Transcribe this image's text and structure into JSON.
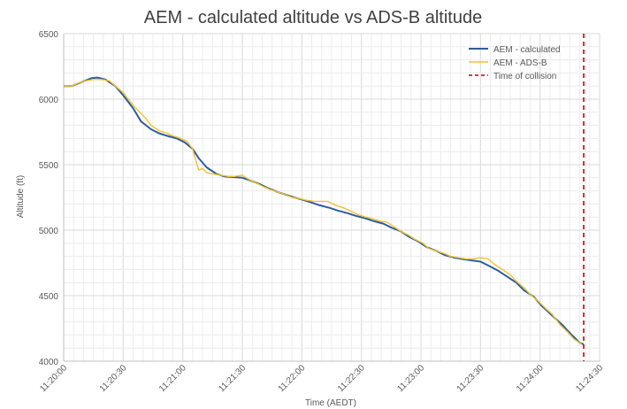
{
  "chart_data": {
    "type": "line",
    "title": "AEM - calculated altitude vs ADS-B altitude",
    "xlabel": "Time (AEDT)",
    "ylabel": "Altitude (ft)",
    "x_ticks": [
      "11:20:00",
      "11:20:30",
      "11:21:00",
      "11:21:30",
      "11:22:00",
      "11:22:30",
      "11:23:00",
      "11:23:30",
      "11:24:00",
      "11:24:30"
    ],
    "y_ticks": [
      4000,
      4500,
      5000,
      5500,
      6000,
      6500
    ],
    "xlim": [
      "11:20:00",
      "11:24:30"
    ],
    "ylim": [
      4000,
      6500
    ],
    "grid": true,
    "legend_position": "top-right",
    "series": [
      {
        "name": "AEM - calculated",
        "color": "#2e5d9b",
        "style": "solid",
        "points": [
          [
            "11:20:00",
            6100
          ],
          [
            "11:20:04",
            6100
          ],
          [
            "11:20:09",
            6130
          ],
          [
            "11:20:14",
            6160
          ],
          [
            "11:20:17",
            6165
          ],
          [
            "11:20:21",
            6150
          ],
          [
            "11:20:26",
            6100
          ],
          [
            "11:20:30",
            6030
          ],
          [
            "11:20:35",
            5930
          ],
          [
            "11:20:39",
            5830
          ],
          [
            "11:20:44",
            5770
          ],
          [
            "11:20:48",
            5740
          ],
          [
            "11:20:52",
            5720
          ],
          [
            "11:20:57",
            5700
          ],
          [
            "11:21:01",
            5670
          ],
          [
            "11:21:05",
            5620
          ],
          [
            "11:21:08",
            5550
          ],
          [
            "11:21:12",
            5480
          ],
          [
            "11:21:17",
            5430
          ],
          [
            "11:21:21",
            5410
          ],
          [
            "11:21:26",
            5405
          ],
          [
            "11:21:30",
            5400
          ],
          [
            "11:21:34",
            5380
          ],
          [
            "11:21:39",
            5350
          ],
          [
            "11:21:43",
            5320
          ],
          [
            "11:21:48",
            5290
          ],
          [
            "11:21:52",
            5270
          ],
          [
            "11:21:56",
            5250
          ],
          [
            "11:22:01",
            5230
          ],
          [
            "11:22:05",
            5210
          ],
          [
            "11:22:09",
            5190
          ],
          [
            "11:22:14",
            5170
          ],
          [
            "11:22:18",
            5150
          ],
          [
            "11:22:23",
            5130
          ],
          [
            "11:22:27",
            5110
          ],
          [
            "11:22:32",
            5090
          ],
          [
            "11:22:36",
            5070
          ],
          [
            "11:22:41",
            5050
          ],
          [
            "11:22:45",
            5020
          ],
          [
            "11:22:50",
            4990
          ],
          [
            "11:22:54",
            4950
          ],
          [
            "11:22:59",
            4910
          ],
          [
            "11:23:03",
            4870
          ],
          [
            "11:23:08",
            4840
          ],
          [
            "11:23:12",
            4810
          ],
          [
            "11:23:17",
            4790
          ],
          [
            "11:23:21",
            4780
          ],
          [
            "11:23:25",
            4770
          ],
          [
            "11:23:30",
            4760
          ],
          [
            "11:23:34",
            4730
          ],
          [
            "11:23:39",
            4690
          ],
          [
            "11:23:43",
            4650
          ],
          [
            "11:23:48",
            4600
          ],
          [
            "11:23:52",
            4540
          ],
          [
            "11:23:57",
            4490
          ],
          [
            "11:24:01",
            4420
          ],
          [
            "11:24:06",
            4350
          ],
          [
            "11:24:11",
            4280
          ],
          [
            "11:24:16",
            4200
          ],
          [
            "11:24:20",
            4140
          ],
          [
            "11:24:22",
            4130
          ]
        ]
      },
      {
        "name": "AEM - ADS-B",
        "color": "#f2c12e",
        "style": "solid",
        "points": [
          [
            "11:20:00",
            6100
          ],
          [
            "11:20:04",
            6100
          ],
          [
            "11:20:07",
            6120
          ],
          [
            "11:20:11",
            6140
          ],
          [
            "11:20:15",
            6150
          ],
          [
            "11:20:19",
            6150
          ],
          [
            "11:20:23",
            6140
          ],
          [
            "11:20:26",
            6100
          ],
          [
            "11:20:30",
            6050
          ],
          [
            "11:20:33",
            5990
          ],
          [
            "11:20:37",
            5920
          ],
          [
            "11:20:41",
            5860
          ],
          [
            "11:20:44",
            5800
          ],
          [
            "11:20:48",
            5760
          ],
          [
            "11:20:52",
            5740
          ],
          [
            "11:20:55",
            5720
          ],
          [
            "11:20:59",
            5700
          ],
          [
            "11:21:02",
            5680
          ],
          [
            "11:21:05",
            5620
          ],
          [
            "11:21:06",
            5560
          ],
          [
            "11:21:08",
            5460
          ],
          [
            "11:21:10",
            5470
          ],
          [
            "11:21:12",
            5440
          ],
          [
            "11:21:15",
            5430
          ],
          [
            "11:21:19",
            5420
          ],
          [
            "11:21:23",
            5410
          ],
          [
            "11:21:26",
            5410
          ],
          [
            "11:21:30",
            5420
          ],
          [
            "11:21:33",
            5390
          ],
          [
            "11:21:37",
            5360
          ],
          [
            "11:21:41",
            5330
          ],
          [
            "11:21:44",
            5310
          ],
          [
            "11:21:48",
            5290
          ],
          [
            "11:21:52",
            5270
          ],
          [
            "11:21:55",
            5250
          ],
          [
            "11:21:59",
            5240
          ],
          [
            "11:22:02",
            5230
          ],
          [
            "11:22:06",
            5220
          ],
          [
            "11:22:10",
            5220
          ],
          [
            "11:22:13",
            5220
          ],
          [
            "11:22:17",
            5190
          ],
          [
            "11:22:21",
            5170
          ],
          [
            "11:22:24",
            5150
          ],
          [
            "11:22:28",
            5120
          ],
          [
            "11:22:32",
            5100
          ],
          [
            "11:22:35",
            5090
          ],
          [
            "11:22:39",
            5070
          ],
          [
            "11:22:43",
            5060
          ],
          [
            "11:22:46",
            5030
          ],
          [
            "11:22:50",
            4990
          ],
          [
            "11:22:54",
            4960
          ],
          [
            "11:22:57",
            4930
          ],
          [
            "11:23:01",
            4900
          ],
          [
            "11:23:04",
            4860
          ],
          [
            "11:23:08",
            4840
          ],
          [
            "11:23:12",
            4820
          ],
          [
            "11:23:15",
            4800
          ],
          [
            "11:23:19",
            4790
          ],
          [
            "11:23:23",
            4780
          ],
          [
            "11:23:26",
            4780
          ],
          [
            "11:23:30",
            4790
          ],
          [
            "11:23:34",
            4780
          ],
          [
            "11:23:37",
            4740
          ],
          [
            "11:23:41",
            4700
          ],
          [
            "11:23:45",
            4660
          ],
          [
            "11:23:48",
            4610
          ],
          [
            "11:23:52",
            4560
          ],
          [
            "11:23:55",
            4510
          ],
          [
            "11:23:59",
            4460
          ],
          [
            "11:24:03",
            4400
          ],
          [
            "11:24:06",
            4360
          ],
          [
            "11:24:10",
            4280
          ],
          [
            "11:24:14",
            4220
          ],
          [
            "11:24:17",
            4170
          ],
          [
            "11:24:21",
            4130
          ]
        ]
      },
      {
        "name": "Time of collision",
        "color": "#c00000",
        "style": "dashed",
        "x": "11:24:22"
      }
    ]
  }
}
